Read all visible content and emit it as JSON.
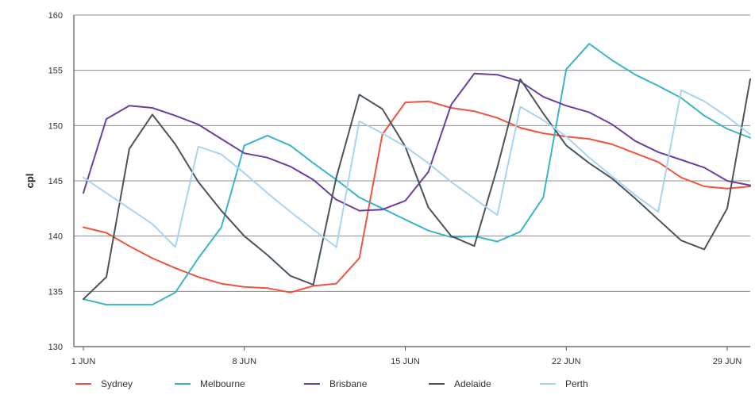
{
  "chart_data": {
    "type": "line",
    "title": "",
    "xlabel": "",
    "ylabel": "cpl",
    "x": [
      "1 JUN",
      "2 JUN",
      "3 JUN",
      "4 JUN",
      "5 JUN",
      "6 JUN",
      "7 JUN",
      "8 JUN",
      "9 JUN",
      "10 JUN",
      "11 JUN",
      "12 JUN",
      "13 JUN",
      "14 JUN",
      "15 JUN",
      "16 JUN",
      "17 JUN",
      "18 JUN",
      "19 JUN",
      "20 JUN",
      "21 JUN",
      "22 JUN",
      "23 JUN",
      "24 JUN",
      "25 JUN",
      "26 JUN",
      "27 JUN",
      "28 JUN",
      "29 JUN",
      "30 JUN"
    ],
    "xticks": [
      "1 JUN",
      "8 JUN",
      "15 JUN",
      "22 JUN",
      "29 JUN"
    ],
    "yticks": [
      130,
      135,
      140,
      145,
      150,
      155,
      160
    ],
    "ylim": [
      130,
      160
    ],
    "grid": true,
    "legend_position": "bottom",
    "series": [
      {
        "name": "Sydney",
        "color": "#f0533f",
        "values": [
          140.8,
          140.3,
          139.1,
          138.0,
          137.1,
          136.3,
          135.7,
          135.4,
          135.3,
          134.9,
          135.5,
          135.7,
          138.0,
          149.2,
          152.1,
          152.2,
          151.6,
          151.3,
          150.7,
          149.8,
          149.3,
          149.0,
          148.8,
          148.3,
          147.5,
          146.7,
          145.3,
          144.5,
          144.3,
          144.5
        ]
      },
      {
        "name": "Melbourne",
        "color": "#3bb4c8",
        "values": [
          134.3,
          133.8,
          133.8,
          133.8,
          134.9,
          138.0,
          140.8,
          148.2,
          149.1,
          148.2,
          146.6,
          145.1,
          143.5,
          142.5,
          141.5,
          140.5,
          139.9,
          140.0,
          139.5,
          140.4,
          143.5,
          155.1,
          157.4,
          155.9,
          154.6,
          153.6,
          152.5,
          150.9,
          149.7,
          148.9
        ]
      },
      {
        "name": "Brisbane",
        "color": "#6b3fa0",
        "values": [
          143.9,
          150.6,
          151.8,
          151.6,
          150.9,
          150.1,
          148.8,
          147.5,
          147.1,
          146.3,
          145.1,
          143.3,
          142.3,
          142.4,
          143.2,
          145.8,
          151.9,
          154.7,
          154.6,
          154.0,
          152.6,
          151.8,
          151.2,
          150.1,
          148.6,
          147.6,
          146.9,
          146.2,
          145.0,
          144.6
        ]
      },
      {
        "name": "Adelaide",
        "color": "#4a545c",
        "values": [
          134.3,
          136.3,
          147.9,
          151.0,
          148.3,
          144.9,
          142.3,
          140.0,
          138.3,
          136.4,
          135.6,
          145.3,
          152.8,
          151.5,
          148.1,
          142.6,
          140.0,
          139.1,
          146.2,
          154.2,
          151.1,
          148.2,
          146.6,
          145.2,
          143.4,
          141.5,
          139.6,
          138.8,
          142.5,
          154.2
        ]
      },
      {
        "name": "Perth",
        "color": "#a8d4ee",
        "values": [
          145.3,
          143.9,
          142.5,
          141.1,
          139.0,
          148.1,
          147.4,
          145.7,
          143.9,
          142.2,
          140.6,
          139.0,
          150.4,
          149.3,
          148.1,
          146.6,
          144.9,
          143.4,
          141.9,
          151.7,
          150.5,
          149.0,
          147.1,
          145.4,
          143.7,
          142.2,
          153.2,
          152.2,
          150.8,
          149.2
        ]
      }
    ]
  }
}
